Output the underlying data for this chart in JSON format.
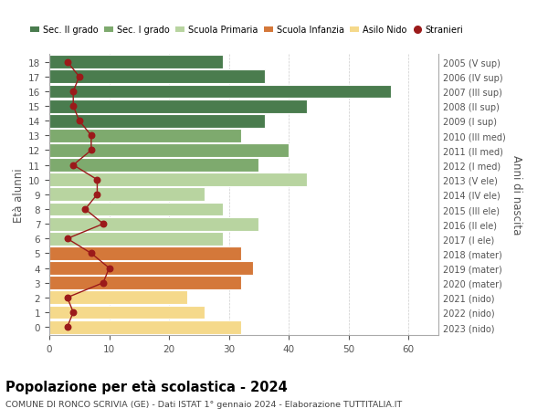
{
  "ages": [
    18,
    17,
    16,
    15,
    14,
    13,
    12,
    11,
    10,
    9,
    8,
    7,
    6,
    5,
    4,
    3,
    2,
    1,
    0
  ],
  "years": [
    "2005 (V sup)",
    "2006 (IV sup)",
    "2007 (III sup)",
    "2008 (II sup)",
    "2009 (I sup)",
    "2010 (III med)",
    "2011 (II med)",
    "2012 (I med)",
    "2013 (V ele)",
    "2014 (IV ele)",
    "2015 (III ele)",
    "2016 (II ele)",
    "2017 (I ele)",
    "2018 (mater)",
    "2019 (mater)",
    "2020 (mater)",
    "2021 (nido)",
    "2022 (nido)",
    "2023 (nido)"
  ],
  "bar_values": [
    29,
    36,
    57,
    43,
    36,
    32,
    40,
    35,
    43,
    26,
    29,
    35,
    29,
    32,
    34,
    32,
    23,
    26,
    32
  ],
  "bar_colors": [
    "#4a7c4e",
    "#4a7c4e",
    "#4a7c4e",
    "#4a7c4e",
    "#4a7c4e",
    "#7eaa6e",
    "#7eaa6e",
    "#7eaa6e",
    "#b8d4a0",
    "#b8d4a0",
    "#b8d4a0",
    "#b8d4a0",
    "#b8d4a0",
    "#d4783a",
    "#d4783a",
    "#d4783a",
    "#f5d98b",
    "#f5d98b",
    "#f5d98b"
  ],
  "stranieri": [
    3,
    5,
    4,
    4,
    5,
    7,
    7,
    4,
    8,
    8,
    6,
    9,
    3,
    7,
    10,
    9,
    3,
    4,
    3
  ],
  "stranieri_color": "#9b1a1a",
  "line_color": "#9b1a1a",
  "legend_labels": [
    "Sec. II grado",
    "Sec. I grado",
    "Scuola Primaria",
    "Scuola Infanzia",
    "Asilo Nido",
    "Stranieri"
  ],
  "legend_colors": [
    "#4a7c4e",
    "#7eaa6e",
    "#b8d4a0",
    "#d4783a",
    "#f5d98b",
    "#9b1a1a"
  ],
  "title": "Popolazione per età scolastica - 2024",
  "subtitle": "COMUNE DI RONCO SCRIVIA (GE) - Dati ISTAT 1° gennaio 2024 - Elaborazione TUTTITALIA.IT",
  "ylabel_left": "Età alunni",
  "ylabel_right": "Anni di nascita",
  "xlim": [
    0,
    65
  ],
  "xticks": [
    0,
    10,
    20,
    30,
    40,
    50,
    60
  ],
  "background_color": "#ffffff",
  "grid_color": "#cccccc",
  "tick_color": "#555555",
  "right_label_color": "#555555"
}
